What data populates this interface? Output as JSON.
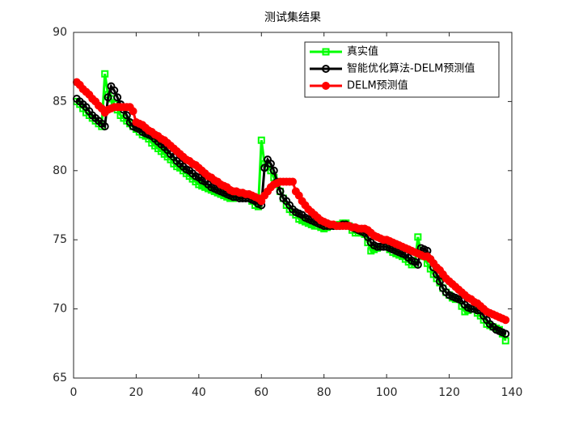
{
  "chart_data": {
    "type": "line",
    "title": "测试集结果",
    "x": [
      1,
      2,
      3,
      4,
      5,
      6,
      7,
      8,
      9,
      10,
      11,
      12,
      13,
      14,
      15,
      16,
      17,
      18,
      19,
      20,
      21,
      22,
      23,
      24,
      25,
      26,
      27,
      28,
      29,
      30,
      31,
      32,
      33,
      34,
      35,
      36,
      37,
      38,
      39,
      40,
      41,
      42,
      43,
      44,
      45,
      46,
      47,
      48,
      49,
      50,
      51,
      52,
      53,
      54,
      55,
      56,
      57,
      58,
      59,
      60,
      61,
      62,
      63,
      64,
      65,
      66,
      67,
      68,
      69,
      70,
      71,
      72,
      73,
      74,
      75,
      76,
      77,
      78,
      79,
      80,
      81,
      82,
      83,
      84,
      85,
      86,
      87,
      88,
      89,
      90,
      91,
      92,
      93,
      94,
      95,
      96,
      97,
      98,
      99,
      100,
      101,
      102,
      103,
      104,
      105,
      106,
      107,
      108,
      109,
      110,
      111,
      112,
      113,
      114,
      115,
      116,
      117,
      118,
      119,
      120,
      121,
      122,
      123,
      124,
      125,
      126,
      127,
      128,
      129,
      130,
      131,
      132,
      133,
      134,
      135,
      136,
      137,
      138
    ],
    "series": [
      {
        "name": "真实值",
        "color": "#00ff00",
        "marker": "square",
        "filled": false,
        "values": [
          85.0,
          84.8,
          84.5,
          84.2,
          84.0,
          83.8,
          83.6,
          83.4,
          83.2,
          87.0,
          85.5,
          85.2,
          84.8,
          84.4,
          84.0,
          83.8,
          83.6,
          83.4,
          83.2,
          83.0,
          82.8,
          82.6,
          82.5,
          82.3,
          82.0,
          81.8,
          81.6,
          81.4,
          81.2,
          81.0,
          80.8,
          80.5,
          80.3,
          80.2,
          80.0,
          79.8,
          79.6,
          79.4,
          79.2,
          79.0,
          78.9,
          78.8,
          78.7,
          78.6,
          78.5,
          78.4,
          78.3,
          78.2,
          78.1,
          78.0,
          78.0,
          78.1,
          78.1,
          78.2,
          78.2,
          78.0,
          77.8,
          77.5,
          77.4,
          82.2,
          80.5,
          80.3,
          80.0,
          79.5,
          79.0,
          78.5,
          78.0,
          77.5,
          77.2,
          77.0,
          76.8,
          76.5,
          76.4,
          76.3,
          76.2,
          76.1,
          76.0,
          76.0,
          75.9,
          75.8,
          75.9,
          76.0,
          76.0,
          76.0,
          76.1,
          76.2,
          76.2,
          76.0,
          75.7,
          75.5,
          75.5,
          75.5,
          75.4,
          74.8,
          74.2,
          74.3,
          74.4,
          74.5,
          74.5,
          74.5,
          74.3,
          74.1,
          74.0,
          73.9,
          73.8,
          73.6,
          73.4,
          73.2,
          73.2,
          75.2,
          74.0,
          73.8,
          73.3,
          72.9,
          72.5,
          72.2,
          71.9,
          71.5,
          71.2,
          71.0,
          70.8,
          70.7,
          70.7,
          70.2,
          69.8,
          69.9,
          70.0,
          70.0,
          69.7,
          69.5,
          69.2,
          68.9,
          68.8,
          68.7,
          68.6,
          68.5,
          68.2,
          67.7
        ]
      },
      {
        "name": "智能优化算法-DELM预测值",
        "color": "#000000",
        "marker": "circle",
        "filled": false,
        "values": [
          85.2,
          85.0,
          84.8,
          84.6,
          84.3,
          84.0,
          83.8,
          83.6,
          83.4,
          83.2,
          85.3,
          86.1,
          85.8,
          85.3,
          84.8,
          84.4,
          84.0,
          83.5,
          83.2,
          83.1,
          83.0,
          82.8,
          82.7,
          82.6,
          82.5,
          82.3,
          82.1,
          81.9,
          81.7,
          81.5,
          81.2,
          81.0,
          80.7,
          80.5,
          80.3,
          80.1,
          80.0,
          79.8,
          79.6,
          79.5,
          79.3,
          79.2,
          79.0,
          78.8,
          78.7,
          78.6,
          78.5,
          78.4,
          78.3,
          78.2,
          78.1,
          78.1,
          78.0,
          78.0,
          78.0,
          78.0,
          77.9,
          77.8,
          77.6,
          77.5,
          80.2,
          80.8,
          80.5,
          80.0,
          79.2,
          78.5,
          78.0,
          77.8,
          77.5,
          77.2,
          77.0,
          76.9,
          76.8,
          76.6,
          76.5,
          76.4,
          76.3,
          76.2,
          76.1,
          76.0,
          76.0,
          76.0,
          76.0,
          76.0,
          76.0,
          76.1,
          76.1,
          76.0,
          75.9,
          75.8,
          75.7,
          75.6,
          75.5,
          75.2,
          74.8,
          74.6,
          74.5,
          74.5,
          74.5,
          74.5,
          74.4,
          74.3,
          74.2,
          74.1,
          74.0,
          73.9,
          73.7,
          73.5,
          73.4,
          73.2,
          74.4,
          74.3,
          74.2,
          73.6,
          73.0,
          72.5,
          72.0,
          71.5,
          71.2,
          71.0,
          70.9,
          70.8,
          70.7,
          70.6,
          70.3,
          70.1,
          70.0,
          70.0,
          69.9,
          69.9,
          69.5,
          69.2,
          68.9,
          68.7,
          68.5,
          68.4,
          68.3,
          68.2
        ]
      },
      {
        "name": "DELM预测值",
        "color": "#ff0000",
        "marker": "circle",
        "filled": true,
        "values": [
          86.4,
          86.2,
          85.9,
          85.7,
          85.5,
          85.2,
          85.0,
          84.7,
          84.5,
          84.2,
          84.4,
          84.5,
          84.6,
          84.6,
          84.6,
          84.6,
          84.6,
          84.6,
          84.3,
          83.5,
          83.4,
          83.3,
          83.1,
          82.9,
          82.8,
          82.6,
          82.5,
          82.3,
          82.2,
          82.0,
          81.8,
          81.6,
          81.4,
          81.2,
          81.0,
          80.8,
          80.7,
          80.5,
          80.4,
          80.2,
          80.0,
          79.8,
          79.6,
          79.5,
          79.3,
          79.2,
          79.0,
          78.9,
          78.8,
          78.6,
          78.5,
          78.5,
          78.4,
          78.4,
          78.3,
          78.3,
          78.2,
          78.1,
          78.0,
          77.8,
          78.2,
          78.5,
          78.8,
          79.0,
          79.1,
          79.2,
          79.2,
          79.2,
          79.2,
          79.2,
          78.5,
          78.2,
          77.8,
          77.5,
          77.2,
          77.0,
          76.8,
          76.6,
          76.4,
          76.3,
          76.2,
          76.1,
          76.1,
          76.0,
          76.0,
          76.0,
          76.0,
          76.0,
          75.9,
          75.9,
          75.8,
          75.8,
          75.8,
          75.7,
          75.5,
          75.3,
          75.2,
          75.1,
          75.0,
          75.0,
          74.9,
          74.8,
          74.7,
          74.6,
          74.5,
          74.4,
          74.3,
          74.2,
          74.1,
          74.0,
          73.9,
          73.8,
          73.8,
          73.6,
          73.3,
          73.0,
          72.8,
          72.5,
          72.2,
          72.0,
          71.8,
          71.6,
          71.4,
          71.2,
          71.0,
          70.8,
          70.7,
          70.5,
          70.4,
          70.2,
          70.0,
          69.8,
          69.7,
          69.6,
          69.5,
          69.4,
          69.3,
          69.2
        ]
      }
    ],
    "xlim": [
      0,
      140
    ],
    "xticks": [
      0,
      20,
      40,
      60,
      80,
      100,
      120,
      140
    ],
    "ylim": [
      65,
      90
    ],
    "yticks": [
      65,
      70,
      75,
      80,
      85,
      90
    ],
    "legend": "upper right",
    "grid": false
  }
}
